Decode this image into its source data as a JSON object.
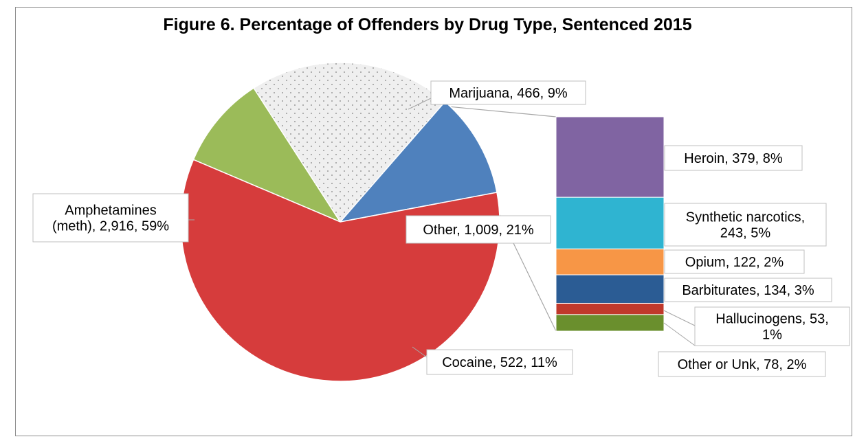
{
  "chart_data": {
    "type": "pie",
    "subtype": "bar-of-pie",
    "title": "Figure 6. Percentage of Offenders by Drug Type, Sentenced 2015",
    "slices": [
      {
        "name": "Marijuana",
        "value": 466,
        "percent": 9,
        "color": "#9bbb59",
        "label": [
          "Marijuana, 466, 9%"
        ]
      },
      {
        "name": "Other",
        "value": 1009,
        "percent": 21,
        "color": "#eeeeee",
        "label": [
          "Other, 1,009, 21%"
        ]
      },
      {
        "name": "Cocaine",
        "value": 522,
        "percent": 11,
        "color": "#4f81bd",
        "label": [
          "Cocaine, 522, 11%"
        ]
      },
      {
        "name": "Amphetamines (meth)",
        "value": 2916,
        "percent": 59,
        "color": "#d63c3c",
        "label": [
          "Amphetamines",
          "(meth), 2,916, 59%"
        ]
      }
    ],
    "breakdown": [
      {
        "name": "Heroin",
        "value": 379,
        "percent": 8,
        "color": "#8064a2",
        "label": [
          "Heroin, 379, 8%"
        ]
      },
      {
        "name": "Synthetic narcotics",
        "value": 243,
        "percent": 5,
        "color": "#2fb4d1",
        "label": [
          "Synthetic narcotics,",
          "243, 5%"
        ]
      },
      {
        "name": "Opium",
        "value": 122,
        "percent": 2,
        "color": "#f79646",
        "label": [
          "Opium, 122, 2%"
        ]
      },
      {
        "name": "Barbiturates",
        "value": 134,
        "percent": 3,
        "color": "#2b5c94",
        "label": [
          "Barbiturates, 134, 3%"
        ]
      },
      {
        "name": "Hallucinogens",
        "value": 53,
        "percent": 1,
        "color": "#c0392b",
        "label": [
          "Hallucinogens, 53,",
          "1%"
        ]
      },
      {
        "name": "Other or Unk",
        "value": 78,
        "percent": 2,
        "color": "#6a8f2d",
        "label": [
          "Other or Unk, 78, 2%"
        ]
      }
    ]
  }
}
